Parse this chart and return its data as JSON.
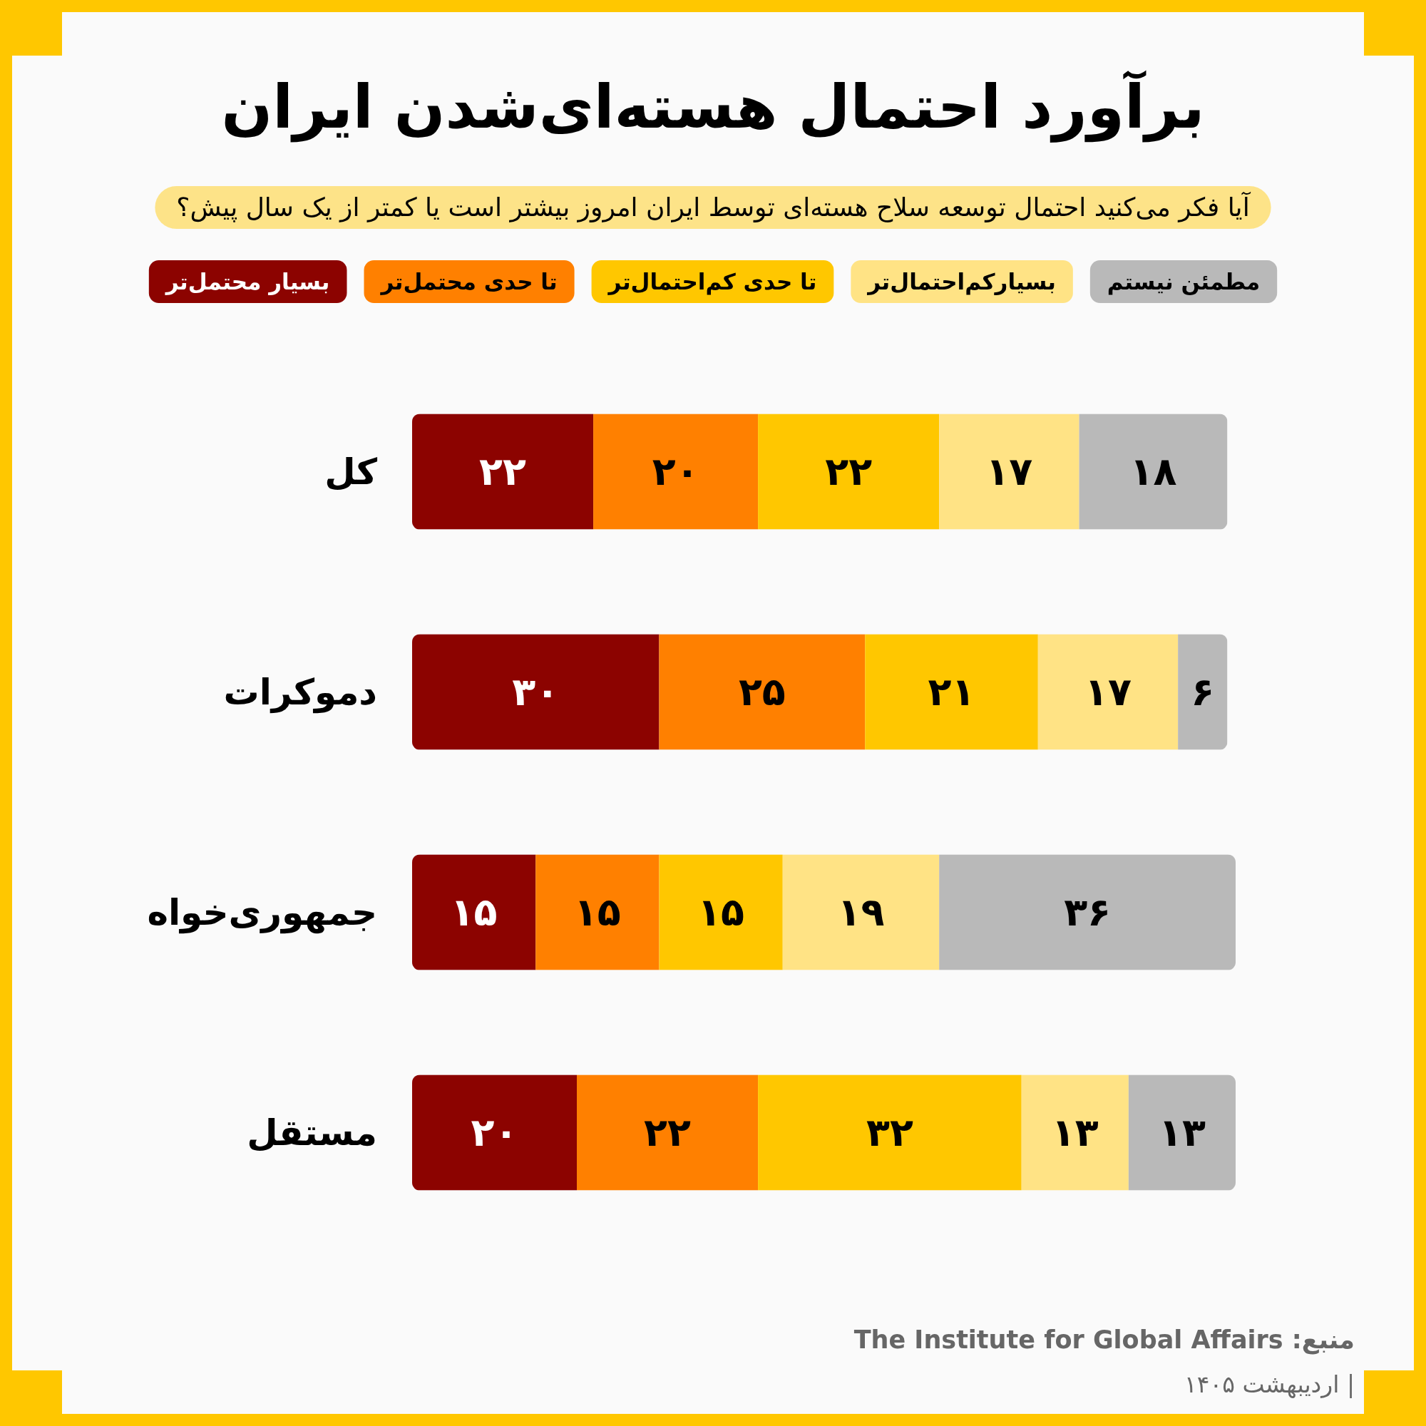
{
  "chart_data": {
    "type": "bar",
    "orientation": "horizontal",
    "stacked": true,
    "title": "برآورد احتمال هسته‌ای‌شدن ایران",
    "subtitle": "آیا فکر می‌کنید احتمال توسعه سلاح هسته‌ای توسط ایران امروز بیشتر است یا کمتر از یک سال پیش؟",
    "categories": [
      "کل",
      "دموکرات",
      "جمهوری‌خواه",
      "مستقل"
    ],
    "series": [
      {
        "name": "بسیار محتمل‌تر",
        "color": "#8c0300",
        "values": [
          22,
          30,
          15,
          20
        ],
        "value_labels": [
          "۲۲",
          "۳۰",
          "۱۵",
          "۲۰"
        ]
      },
      {
        "name": "تا حدی محتمل‌تر",
        "color": "#ff8000",
        "values": [
          20,
          25,
          15,
          22
        ],
        "value_labels": [
          "۲۰",
          "۲۵",
          "۱۵",
          "۲۲"
        ]
      },
      {
        "name": "تا حدی کم‌احتمال‌تر",
        "color": "#ffc700",
        "values": [
          22,
          21,
          15,
          32
        ],
        "value_labels": [
          "۲۲",
          "۲۱",
          "۱۵",
          "۳۲"
        ]
      },
      {
        "name": "بسیارکم‌احتمال‌تر",
        "color": "#ffe385",
        "values": [
          17,
          17,
          19,
          13
        ],
        "value_labels": [
          "۱۷",
          "۱۷",
          "۱۹",
          "۱۳"
        ]
      },
      {
        "name": "مطمئن نیستم",
        "color": "#b9b9b9",
        "values": [
          18,
          6,
          36,
          13
        ],
        "value_labels": [
          "۱۸",
          "۶",
          "۳۶",
          "۱۳"
        ]
      }
    ],
    "legend": "top",
    "annotations": [
      "منبع: The Institute for Global Affairs",
      "| اردیبهشت ۱۴۰۵"
    ]
  }
}
